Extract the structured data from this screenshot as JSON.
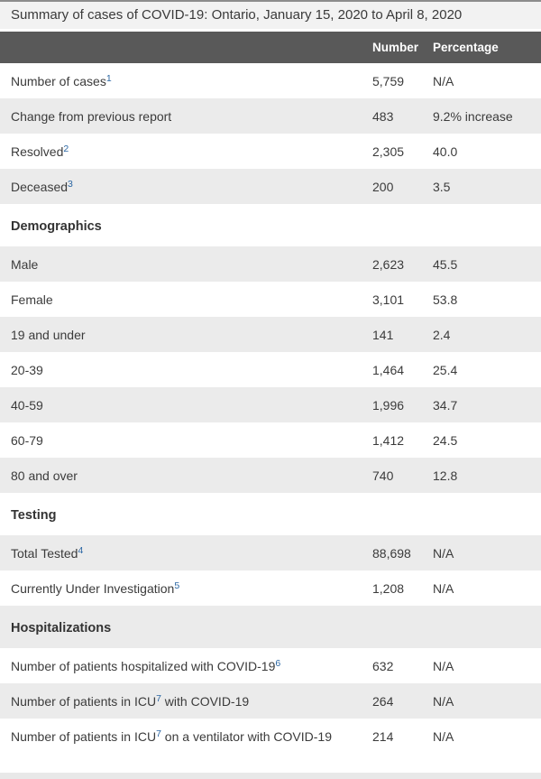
{
  "table": {
    "caption": "Summary of cases of COVID-19: Ontario, January 15, 2020 to April 8, 2020",
    "columns": {
      "label": "",
      "number": "Number",
      "percentage": "Percentage"
    },
    "rows": [
      {
        "type": "data",
        "label": "Number of cases",
        "sup": "1",
        "number": "5,759",
        "percentage": "N/A"
      },
      {
        "type": "data",
        "label": "Change from previous report",
        "number": "483",
        "percentage": "9.2% increase"
      },
      {
        "type": "data",
        "label": "Resolved",
        "sup": "2",
        "number": "2,305",
        "percentage": "40.0"
      },
      {
        "type": "data",
        "label": "Deceased",
        "sup": "3",
        "number": "200",
        "percentage": "3.5"
      },
      {
        "type": "section",
        "label": "Demographics"
      },
      {
        "type": "data",
        "label": "Male",
        "number": "2,623",
        "percentage": "45.5"
      },
      {
        "type": "data",
        "label": "Female",
        "number": "3,101",
        "percentage": "53.8"
      },
      {
        "type": "data",
        "label": "19 and under",
        "number": "141",
        "percentage": "2.4"
      },
      {
        "type": "data",
        "label": "20-39",
        "number": "1,464",
        "percentage": "25.4"
      },
      {
        "type": "data",
        "label": "40-59",
        "number": "1,996",
        "percentage": "34.7"
      },
      {
        "type": "data",
        "label": "60-79",
        "number": "1,412",
        "percentage": "24.5"
      },
      {
        "type": "data",
        "label": "80 and over",
        "number": "740",
        "percentage": "12.8"
      },
      {
        "type": "section",
        "label": "Testing"
      },
      {
        "type": "data",
        "label": "Total Tested",
        "sup": "4",
        "number": "88,698",
        "percentage": "N/A"
      },
      {
        "type": "data",
        "label": "Currently Under Investigation",
        "sup": "5",
        "number": "1,208",
        "percentage": "N/A"
      },
      {
        "type": "section",
        "label": "Hospitalizations"
      },
      {
        "type": "data",
        "label": "Number of patients hospitalized with COVID-19",
        "sup": "6",
        "number": "632",
        "percentage": "N/A"
      },
      {
        "type": "data",
        "label": "Number of patients in ICU",
        "sup": "7",
        "suffix": " with COVID-19",
        "number": "264",
        "percentage": "N/A"
      },
      {
        "type": "data",
        "label": "Number of patients in ICU",
        "sup": "7",
        "suffix": " on a ventilator with COVID-19",
        "number": "214",
        "percentage": "N/A"
      }
    ]
  },
  "colors": {
    "header_bg": "#595959",
    "header_text": "#ffffff",
    "row_alt_bg": "#ebebeb",
    "caption_bg": "#f2f2f2",
    "caption_top_border": "#8c8c8c",
    "body_text": "#3b3b3b",
    "footnote_link": "#2a66a3",
    "next_table_strip_bg": "#e8e8e8"
  }
}
